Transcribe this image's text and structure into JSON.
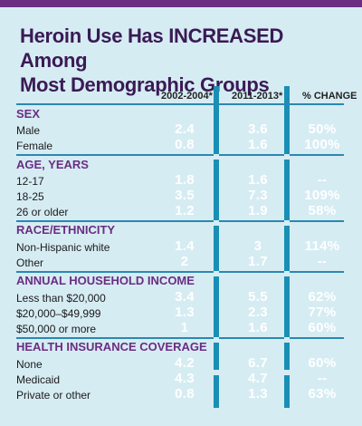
{
  "title_line1": "Heroin Use Has INCREASED Among",
  "title_line2": "Most Demographic Groups",
  "columns": {
    "period1": "2002-2004*",
    "period2": "2011-2013*",
    "change": "% CHANGE"
  },
  "sections": [
    {
      "name": "SEX",
      "rows": [
        {
          "label": "Male",
          "v1": "2.4",
          "v2": "3.6",
          "change": "50%"
        },
        {
          "label": "Female",
          "v1": "0.8",
          "v2": "1.6",
          "change": "100%"
        }
      ]
    },
    {
      "name": "AGE, YEARS",
      "rows": [
        {
          "label": "12-17",
          "v1": "1.8",
          "v2": "1.6",
          "change": "--"
        },
        {
          "label": "18-25",
          "v1": "3.5",
          "v2": "7.3",
          "change": "109%"
        },
        {
          "label": "26 or older",
          "v1": "1.2",
          "v2": "1.9",
          "change": "58%"
        }
      ]
    },
    {
      "name": "RACE/ETHNICITY",
      "rows": [
        {
          "label": "Non-Hispanic white",
          "v1": "1.4",
          "v2": "3",
          "change": "114%"
        },
        {
          "label": "Other",
          "v1": "2",
          "v2": "1.7",
          "change": "--"
        }
      ]
    },
    {
      "name": "ANNUAL HOUSEHOLD INCOME",
      "rows": [
        {
          "label": "Less than $20,000",
          "v1": "3.4",
          "v2": "5.5",
          "change": "62%"
        },
        {
          "label": "$20,000–$49,999",
          "v1": "1.3",
          "v2": "2.3",
          "change": "77%"
        },
        {
          "label": "$50,000 or more",
          "v1": "1",
          "v2": "1.6",
          "change": "60%"
        }
      ]
    },
    {
      "name": "HEALTH INSURANCE COVERAGE",
      "rows": [
        {
          "label": "None",
          "v1": "4.2",
          "v2": "6.7",
          "change": "60%"
        },
        {
          "label": "Medicaid",
          "v1": "4.3",
          "v2": "4.7",
          "change": "--"
        },
        {
          "label": "Private or other",
          "v1": "0.8",
          "v2": "1.3",
          "change": "63%"
        }
      ]
    }
  ],
  "colors": {
    "accent_purple": "#6a2d82",
    "bar_blue": "#1a8fb5",
    "background": "#d6ecf3"
  }
}
